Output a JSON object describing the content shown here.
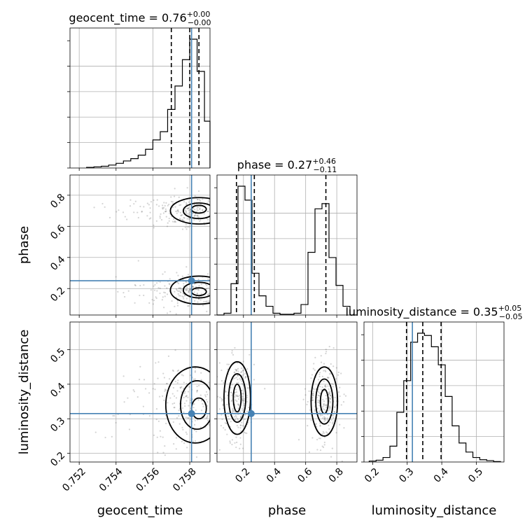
{
  "chart_data": {
    "type": "corner",
    "parameters": [
      "geocent_time",
      "phase",
      "luminosity_distance"
    ],
    "truths": {
      "geocent_time": 0.7581,
      "phase": 0.25,
      "luminosity_distance": 0.315
    },
    "colors": {
      "truth": "#4682b4",
      "hist": "#000000",
      "grid": "#b0b0b0",
      "scatter": "#555555"
    },
    "grid": true,
    "titles": [
      {
        "param": "geocent_time",
        "prefix": "geocent_time = ",
        "median": "0.76",
        "plus": "+0.00",
        "minus": "−0.00"
      },
      {
        "param": "phase",
        "prefix": "phase = ",
        "median": "0.27",
        "plus": "+0.46",
        "minus": "−0.11"
      },
      {
        "param": "luminosity_distance",
        "prefix": "luminosity_distance = ",
        "median": "0.35",
        "plus": "+0.05",
        "minus": "−0.05"
      }
    ],
    "axes": {
      "geocent_time": {
        "range": [
          0.7515,
          0.7591
        ],
        "ticks": [
          "0.752",
          "0.754",
          "0.756",
          "0.758"
        ],
        "tick_values": [
          0.752,
          0.754,
          0.756,
          0.758
        ]
      },
      "phase": {
        "range": [
          0.03,
          0.93
        ],
        "ticks": [
          "0.2",
          "0.4",
          "0.6",
          "0.8"
        ],
        "tick_values": [
          0.2,
          0.4,
          0.6,
          0.8
        ]
      },
      "luminosity_distance": {
        "range": [
          0.175,
          0.58
        ],
        "ticks": [
          "0.2",
          "0.3",
          "0.4",
          "0.5"
        ],
        "tick_values": [
          0.2,
          0.3,
          0.4,
          0.5
        ]
      }
    },
    "quantiles": {
      "geocent_time": [
        0.757,
        0.758,
        0.7585
      ],
      "phase": [
        0.155,
        0.27,
        0.73
      ],
      "luminosity_distance": [
        0.298,
        0.345,
        0.398
      ]
    },
    "histograms": {
      "geocent_time": {
        "edges": [
          0.7524,
          0.7528,
          0.7532,
          0.7536,
          0.754,
          0.7544,
          0.7548,
          0.7552,
          0.7556,
          0.756,
          0.7564,
          0.7568,
          0.7572,
          0.7576,
          0.758,
          0.7584,
          0.7588,
          0.7591
        ],
        "counts": [
          1,
          2,
          3,
          5,
          8,
          12,
          16,
          22,
          32,
          48,
          62,
          100,
          140,
          185,
          220,
          165,
          80
        ]
      },
      "phase": {
        "edges": [
          0.03,
          0.075,
          0.12,
          0.165,
          0.21,
          0.255,
          0.3,
          0.345,
          0.39,
          0.435,
          0.48,
          0.525,
          0.57,
          0.615,
          0.66,
          0.705,
          0.75,
          0.795,
          0.84,
          0.885,
          0.93
        ],
        "counts": [
          0,
          5,
          90,
          370,
          330,
          120,
          55,
          25,
          5,
          2,
          2,
          5,
          30,
          180,
          305,
          320,
          165,
          85,
          25,
          0
        ]
      },
      "luminosity_distance": {
        "edges": [
          0.19,
          0.21,
          0.23,
          0.25,
          0.27,
          0.29,
          0.31,
          0.33,
          0.35,
          0.37,
          0.39,
          0.41,
          0.43,
          0.45,
          0.47,
          0.49,
          0.51,
          0.53,
          0.55,
          0.57
        ],
        "counts": [
          2,
          4,
          10,
          35,
          110,
          180,
          265,
          285,
          280,
          255,
          215,
          145,
          80,
          42,
          22,
          10,
          5,
          3,
          1
        ]
      }
    },
    "contours_2d": {
      "phase_vs_geocent_time": [
        {
          "level": "outer",
          "mode": [
            0.7585,
            0.7
          ],
          "spread": [
            0.00155,
            0.085
          ]
        },
        {
          "level": "middle",
          "mode": [
            0.7585,
            0.7
          ],
          "spread": [
            0.00085,
            0.05
          ]
        },
        {
          "level": "inner",
          "mode": [
            0.7585,
            0.71
          ],
          "spread": [
            0.0004,
            0.025
          ]
        },
        {
          "level": "outer",
          "mode": [
            0.7585,
            0.19
          ],
          "spread": [
            0.00155,
            0.09
          ]
        },
        {
          "level": "middle",
          "mode": [
            0.7585,
            0.19
          ],
          "spread": [
            0.00085,
            0.05
          ]
        },
        {
          "level": "inner",
          "mode": [
            0.7585,
            0.18
          ],
          "spread": [
            0.0004,
            0.025
          ]
        }
      ],
      "luminosity_distance_vs_geocent_time": [
        {
          "level": "outer",
          "mode": [
            0.7583,
            0.34
          ],
          "spread": [
            0.0016,
            0.11
          ]
        },
        {
          "level": "middle",
          "mode": [
            0.7584,
            0.34
          ],
          "spread": [
            0.0009,
            0.07
          ]
        },
        {
          "level": "inner",
          "mode": [
            0.7585,
            0.33
          ],
          "spread": [
            0.0004,
            0.03
          ]
        }
      ],
      "luminosity_distance_vs_phase": [
        {
          "level": "outer",
          "mode": [
            0.16,
            0.36
          ],
          "spread": [
            0.085,
            0.105
          ]
        },
        {
          "level": "middle",
          "mode": [
            0.16,
            0.36
          ],
          "spread": [
            0.055,
            0.07
          ]
        },
        {
          "level": "inner",
          "mode": [
            0.16,
            0.36
          ],
          "spread": [
            0.025,
            0.04
          ]
        },
        {
          "level": "outer",
          "mode": [
            0.72,
            0.35
          ],
          "spread": [
            0.085,
            0.1
          ]
        },
        {
          "level": "middle",
          "mode": [
            0.72,
            0.35
          ],
          "spread": [
            0.055,
            0.065
          ]
        },
        {
          "level": "inner",
          "mode": [
            0.72,
            0.35
          ],
          "spread": [
            0.025,
            0.035
          ]
        }
      ]
    }
  }
}
